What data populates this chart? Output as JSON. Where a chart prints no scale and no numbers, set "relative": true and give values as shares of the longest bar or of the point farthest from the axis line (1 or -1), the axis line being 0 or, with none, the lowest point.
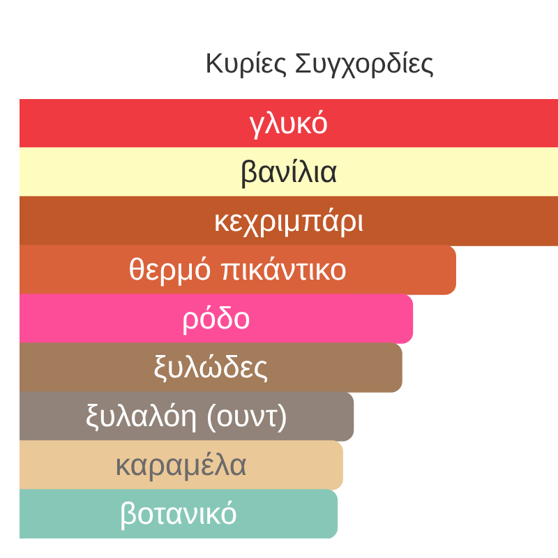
{
  "chart_data": {
    "type": "bar",
    "orientation": "horizontal",
    "relative": true,
    "title": "Κυρίες Συγχορδίες",
    "categories": [
      "γλυκό",
      "βανίλια",
      "κεχριμπάρι",
      "θερμό πικάντικο",
      "ρόδο",
      "ξυλώδες",
      "ξυλαλόη (ουντ)",
      "καραμέλα",
      "βοτανικό"
    ],
    "values": [
      1,
      1,
      1,
      0.81,
      0.73,
      0.71,
      0.62,
      0.6,
      0.59
    ],
    "colors": [
      "#ef3a42",
      "#fffcc0",
      "#c0582a",
      "#d9623b",
      "#fe4d98",
      "#a37c5b",
      "#918379",
      "#ebc898",
      "#87c7b7"
    ]
  }
}
